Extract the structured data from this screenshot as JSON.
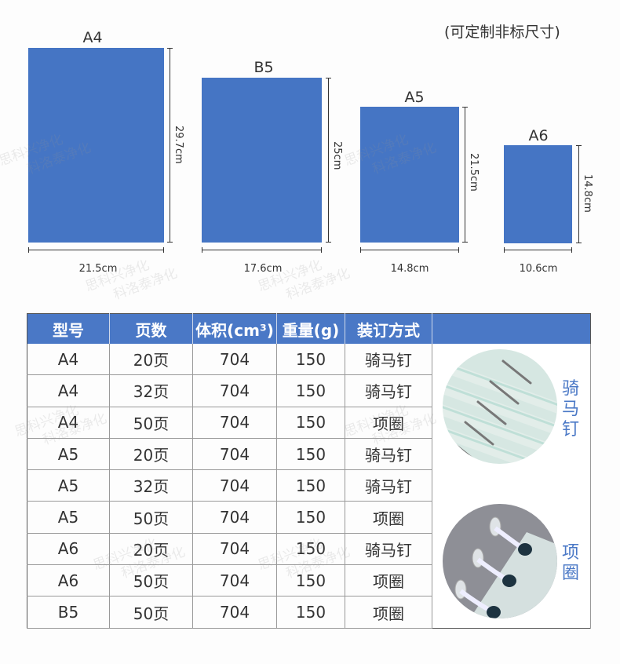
{
  "note": "(可定制非标尺寸)",
  "sizes": [
    {
      "name": "A4",
      "height": "29.7cm",
      "width": "21.5cm"
    },
    {
      "name": "B5",
      "height": "25cm",
      "width": "17.6cm"
    },
    {
      "name": "A5",
      "height": "21.5cm",
      "width": "14.8cm"
    },
    {
      "name": "A6",
      "height": "14.8cm",
      "width": "10.6cm"
    }
  ],
  "table": {
    "headers": [
      "型号",
      "页数",
      "体积(cm³)",
      "重量(g)",
      "装订方式"
    ],
    "rows": [
      [
        "A4",
        "20页",
        "704",
        "150",
        "骑马钉"
      ],
      [
        "A4",
        "32页",
        "704",
        "150",
        "骑马钉"
      ],
      [
        "A4",
        "50页",
        "704",
        "150",
        "项圈"
      ],
      [
        "A5",
        "20页",
        "704",
        "150",
        "骑马钉"
      ],
      [
        "A5",
        "32页",
        "704",
        "150",
        "骑马钉"
      ],
      [
        "A5",
        "50页",
        "704",
        "150",
        "项圈"
      ],
      [
        "A6",
        "20页",
        "704",
        "150",
        "骑马钉"
      ],
      [
        "A6",
        "50页",
        "704",
        "150",
        "项圈"
      ],
      [
        "B5",
        "50页",
        "704",
        "150",
        "项圈"
      ]
    ],
    "binding_images": [
      {
        "label": "骑马钉",
        "icon": "saddle-stitch-photo"
      },
      {
        "label": "项圈",
        "icon": "ring-binding-photo"
      }
    ]
  },
  "watermark": [
    "思科兴净化",
    "科洛泰净化"
  ],
  "colors": {
    "accent": "#4a78c6",
    "sheet": "#4575c4"
  }
}
